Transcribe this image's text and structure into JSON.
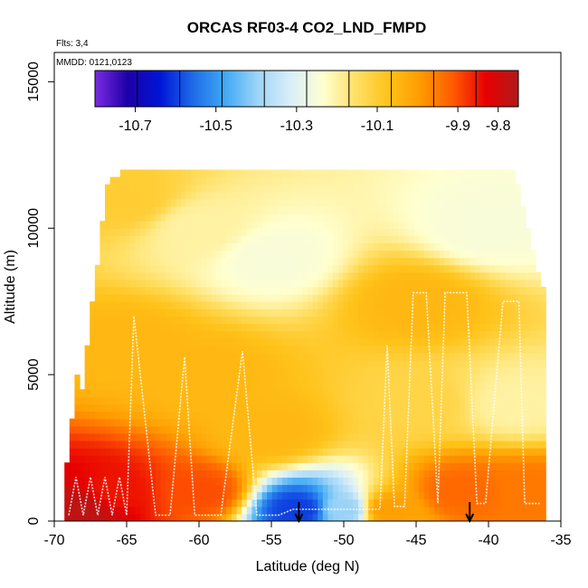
{
  "chart_data": {
    "type": "heatmap",
    "title": "ORCAS RF03-4 CO2_LND_FMPD",
    "subtitle_lines": [
      "Flts: 3,4",
      "MMDD: 0121,0123"
    ],
    "xlabel": "Latitude (deg N)",
    "ylabel": "Altitude (m)",
    "xlim": [
      -70,
      -35
    ],
    "ylim": [
      0,
      16000
    ],
    "x_ticks": [
      "-70",
      "-65",
      "-60",
      "-55",
      "-50",
      "-45",
      "-40",
      "-35"
    ],
    "x_tick_values": [
      -70,
      -65,
      -60,
      -55,
      -50,
      -45,
      -40,
      -35
    ],
    "y_ticks": [
      "0",
      "5000",
      "10000",
      "15000"
    ],
    "y_tick_values": [
      0,
      5000,
      10000,
      15000
    ],
    "colorbar": {
      "range": [
        -10.8,
        -9.75
      ],
      "labels": [
        "-10.7",
        "-10.5",
        "-10.3",
        "-10.1",
        "-9.9",
        "-9.8"
      ],
      "label_values": [
        -10.7,
        -10.5,
        -10.3,
        -10.1,
        -9.9,
        -9.8
      ],
      "colors": [
        "#7B2BE2",
        "#1C00A8",
        "#0015D6",
        "#1E6BE8",
        "#3FA9F5",
        "#9ED5F7",
        "#D8EEF9",
        "#FFFFD0",
        "#FFE066",
        "#FFC31A",
        "#FF9B00",
        "#FF5A00",
        "#E80000",
        "#B01A1A"
      ]
    },
    "field_samples": [
      {
        "lat": -68,
        "alt": 500,
        "value": -9.77
      },
      {
        "lat": -66,
        "alt": 1000,
        "value": -9.85
      },
      {
        "lat": -65,
        "alt": 6000,
        "value": -10.05
      },
      {
        "lat": -65,
        "alt": 11000,
        "value": -10.1
      },
      {
        "lat": -60,
        "alt": 1000,
        "value": -9.9
      },
      {
        "lat": -60,
        "alt": 5000,
        "value": -10.05
      },
      {
        "lat": -60,
        "alt": 10000,
        "value": -10.2
      },
      {
        "lat": -55,
        "alt": 3000,
        "value": -10.05
      },
      {
        "lat": -55,
        "alt": 9000,
        "value": -10.25
      },
      {
        "lat": -53,
        "alt": 400,
        "value": -10.6
      },
      {
        "lat": -50,
        "alt": 400,
        "value": -10.4
      },
      {
        "lat": -47,
        "alt": 400,
        "value": -10.0
      },
      {
        "lat": -45,
        "alt": 7500,
        "value": -10.05
      },
      {
        "lat": -45,
        "alt": 4000,
        "value": -10.12
      },
      {
        "lat": -42,
        "alt": 1000,
        "value": -9.93
      },
      {
        "lat": -40,
        "alt": 10000,
        "value": -10.25
      },
      {
        "lat": -38,
        "alt": 4000,
        "value": -10.2
      },
      {
        "lat": -37,
        "alt": 1000,
        "value": -9.95
      }
    ],
    "markers": [
      {
        "type": "arrow-down",
        "lat": -53.1
      },
      {
        "type": "arrow-down",
        "lat": -41.3
      }
    ],
    "flight_track": [
      [
        -69,
        200
      ],
      [
        -68.5,
        1500
      ],
      [
        -68,
        200
      ],
      [
        -67.5,
        1500
      ],
      [
        -67,
        200
      ],
      [
        -66.5,
        1500
      ],
      [
        -66,
        200
      ],
      [
        -65.5,
        1500
      ],
      [
        -65,
        200
      ],
      [
        -64.5,
        7000
      ],
      [
        -63,
        200
      ],
      [
        -62,
        200
      ],
      [
        -61,
        5600
      ],
      [
        -60.3,
        200
      ],
      [
        -58.5,
        200
      ],
      [
        -57,
        5800
      ],
      [
        -56,
        200
      ],
      [
        -54.5,
        200
      ],
      [
        -53.5,
        400
      ],
      [
        -52.3,
        400
      ],
      [
        -47.5,
        400
      ],
      [
        -47,
        6000
      ],
      [
        -46.5,
        500
      ],
      [
        -45.8,
        500
      ],
      [
        -45.2,
        7800
      ],
      [
        -44.3,
        7800
      ],
      [
        -43.5,
        600
      ],
      [
        -43,
        7800
      ],
      [
        -41.5,
        7800
      ],
      [
        -40.8,
        600
      ],
      [
        -40.2,
        600
      ],
      [
        -39,
        7500
      ],
      [
        -37.9,
        7500
      ],
      [
        -37.5,
        600
      ],
      [
        -36.4,
        600
      ]
    ]
  }
}
